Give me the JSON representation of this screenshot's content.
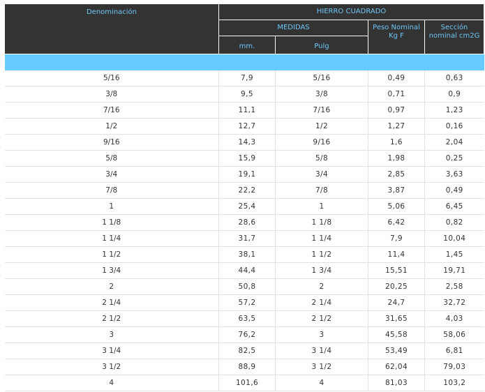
{
  "header": {
    "denominacion": "Denominación",
    "group": "HIERRO CUADRADO",
    "medidas": "MEDIDAS",
    "peso_line1": "Peso Nominal",
    "peso_line2": "Kg F",
    "seccion_line1": "Sección",
    "seccion_line2": "nominal cm2G",
    "mm": "mm.",
    "pulg": "Pulg"
  },
  "colors": {
    "header_bg": "#333333",
    "header_text": "#6ec6f5",
    "band": "#66ccff",
    "row_border": "#e2e2e2"
  },
  "rows": [
    {
      "den": "5/16",
      "mm": "7,9",
      "pulg": "5/16",
      "peso": "0,49",
      "sec": "0,63"
    },
    {
      "den": "3/8",
      "mm": "9,5",
      "pulg": "3/8",
      "peso": "0,71",
      "sec": "0,9"
    },
    {
      "den": "7/16",
      "mm": "11,1",
      "pulg": "7/16",
      "peso": "0,97",
      "sec": "1,23"
    },
    {
      "den": "1/2",
      "mm": "12,7",
      "pulg": "1/2",
      "peso": "1,27",
      "sec": "0,16"
    },
    {
      "den": "9/16",
      "mm": "14,3",
      "pulg": "9/16",
      "peso": "1,6",
      "sec": "2,04"
    },
    {
      "den": "5/8",
      "mm": "15,9",
      "pulg": "5/8",
      "peso": "1,98",
      "sec": "0,25"
    },
    {
      "den": "3/4",
      "mm": "19,1",
      "pulg": "3/4",
      "peso": "2,85",
      "sec": "3,63"
    },
    {
      "den": "7/8",
      "mm": "22,2",
      "pulg": "7/8",
      "peso": "3,87",
      "sec": "0,49"
    },
    {
      "den": "1",
      "mm": "25,4",
      "pulg": "1",
      "peso": "5,06",
      "sec": "6,45"
    },
    {
      "den": "1 1/8",
      "mm": "28,6",
      "pulg": "1 1/8",
      "peso": "6,42",
      "sec": "0,82"
    },
    {
      "den": "1 1/4",
      "mm": "31,7",
      "pulg": "1 1/4",
      "peso": "7,9",
      "sec": "10,04"
    },
    {
      "den": "1 1/2",
      "mm": "38,1",
      "pulg": "1 1/2",
      "peso": "11,4",
      "sec": "1,45"
    },
    {
      "den": "1 3/4",
      "mm": "44,4",
      "pulg": "1 3/4",
      "peso": "15,51",
      "sec": "19,71"
    },
    {
      "den": "2",
      "mm": "50,8",
      "pulg": "2",
      "peso": "20,25",
      "sec": "2,58"
    },
    {
      "den": "2 1/4",
      "mm": "57,2",
      "pulg": "2 1/4",
      "peso": "24,7",
      "sec": "32,72"
    },
    {
      "den": "2 1/2",
      "mm": "63,5",
      "pulg": "2 1/2",
      "peso": "31,65",
      "sec": "4,03"
    },
    {
      "den": "3",
      "mm": "76,2",
      "pulg": "3",
      "peso": "45,58",
      "sec": "58,06"
    },
    {
      "den": "3 1/4",
      "mm": "82,5",
      "pulg": "3 1/4",
      "peso": "53,49",
      "sec": "6,81"
    },
    {
      "den": "3 1/2",
      "mm": "88,9",
      "pulg": "3 1/2",
      "peso": "62,04",
      "sec": "79,03"
    },
    {
      "den": "4",
      "mm": "101,6",
      "pulg": "4",
      "peso": "81,03",
      "sec": "103,2"
    }
  ]
}
